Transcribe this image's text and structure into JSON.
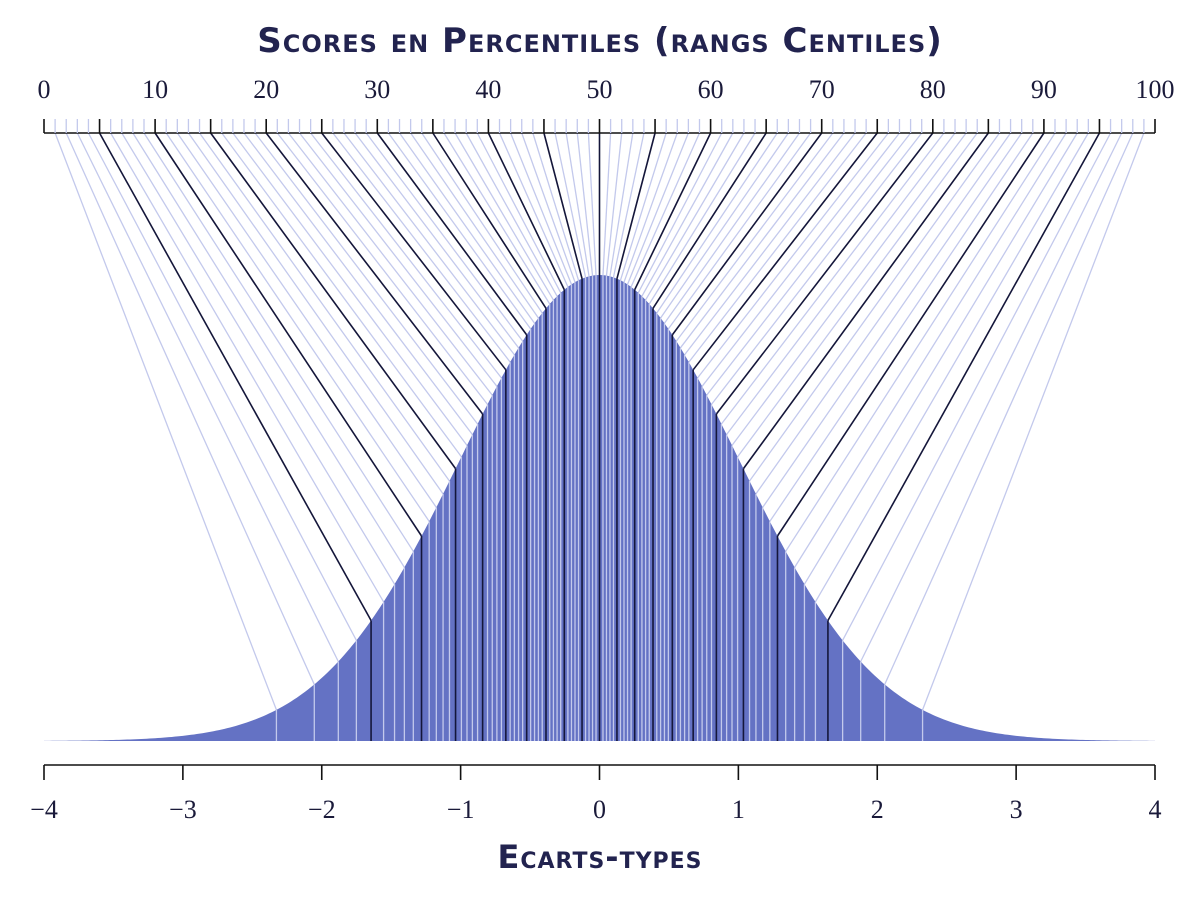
{
  "chart_data": {
    "type": "line",
    "title": "Scores en Percentiles (rangs Centiles)",
    "xlabel": "Ecarts-types",
    "ylabel": "",
    "description": "Standard normal density curve with lines mapping each percentile (1–99) on the top axis to its corresponding z-score on the bottom axis. Every 5th percentile line is drawn dark; others light.",
    "top_axis": {
      "label": "Scores en Percentiles (rangs Centiles)",
      "range": [
        0,
        100
      ],
      "tick_labels": [
        "0",
        "10",
        "20",
        "30",
        "40",
        "50",
        "60",
        "70",
        "80",
        "90",
        "100"
      ],
      "major_tick_step": 5,
      "minor_tick_step": 1
    },
    "bottom_axis": {
      "label": "Ecarts-types",
      "range": [
        -4,
        4
      ],
      "tick_labels": [
        "−4",
        "−3",
        "−2",
        "−1",
        "0",
        "1",
        "2",
        "3",
        "4"
      ]
    },
    "curve": {
      "distribution": "normal",
      "mean": 0,
      "sd": 1
    },
    "percentile_z_map": [
      {
        "percentile": 5,
        "z": -1.645
      },
      {
        "percentile": 10,
        "z": -1.282
      },
      {
        "percentile": 15,
        "z": -1.036
      },
      {
        "percentile": 20,
        "z": -0.842
      },
      {
        "percentile": 25,
        "z": -0.674
      },
      {
        "percentile": 30,
        "z": -0.524
      },
      {
        "percentile": 35,
        "z": -0.385
      },
      {
        "percentile": 40,
        "z": -0.253
      },
      {
        "percentile": 45,
        "z": -0.126
      },
      {
        "percentile": 50,
        "z": 0.0
      },
      {
        "percentile": 55,
        "z": 0.126
      },
      {
        "percentile": 60,
        "z": 0.253
      },
      {
        "percentile": 65,
        "z": 0.385
      },
      {
        "percentile": 70,
        "z": 0.524
      },
      {
        "percentile": 75,
        "z": 0.674
      },
      {
        "percentile": 80,
        "z": 0.842
      },
      {
        "percentile": 85,
        "z": 1.036
      },
      {
        "percentile": 90,
        "z": 1.282
      },
      {
        "percentile": 95,
        "z": 1.645
      }
    ],
    "grid": false,
    "legend": null
  },
  "colors": {
    "title": "#22234f",
    "fill": "#6472c4",
    "light_line": "#c3c9ec",
    "dark_line": "#14163a",
    "axis": "#111111"
  },
  "labels": {
    "title": "Scores en Percentiles (rangs Centiles)",
    "xlabel": "Ecarts-types"
  }
}
